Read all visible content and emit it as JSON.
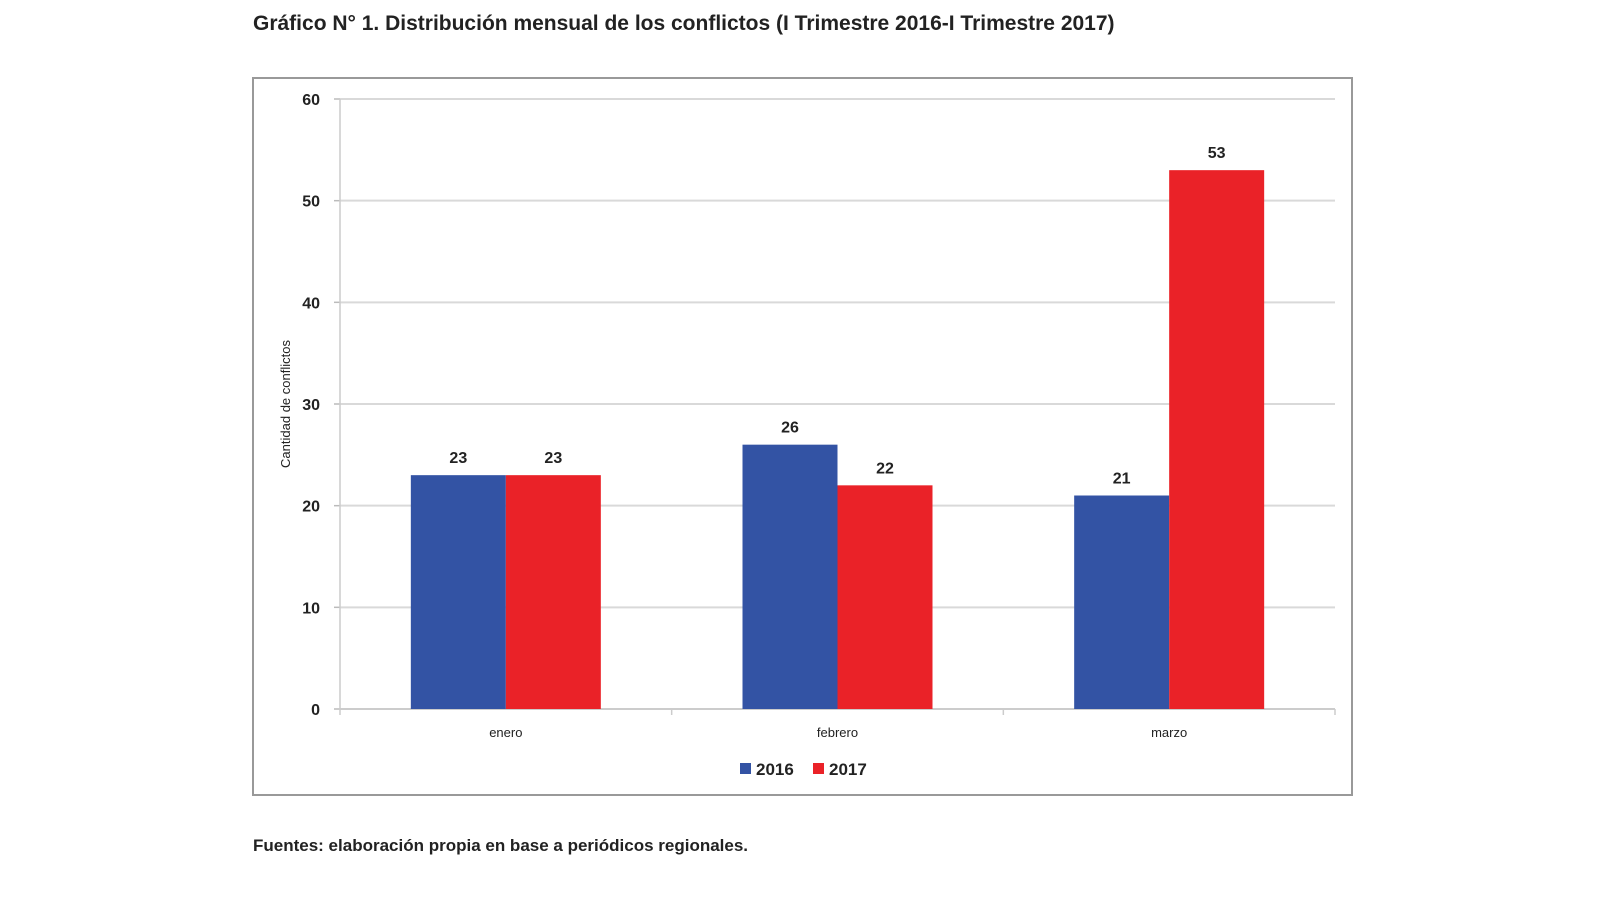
{
  "chart_data": {
    "type": "bar",
    "title": "Gráfico N° 1. Distribución mensual de los conflictos (I Trimestre 2016-I Trimestre 2017)",
    "categories": [
      "enero",
      "febrero",
      "marzo"
    ],
    "series": [
      {
        "name": "2016",
        "values": [
          23,
          26,
          21
        ],
        "color": "#3353a4"
      },
      {
        "name": "2017",
        "values": [
          23,
          22,
          53
        ],
        "color": "#ea2228"
      }
    ],
    "xlabel": "",
    "ylabel": "Cantidad de conflictos",
    "ylim": [
      0,
      60
    ],
    "yticks": [
      0,
      10,
      20,
      30,
      40,
      50,
      60
    ],
    "grid": true,
    "legend": "bottom",
    "source": "Fuentes: elaboración propia en base a periódicos regionales."
  }
}
